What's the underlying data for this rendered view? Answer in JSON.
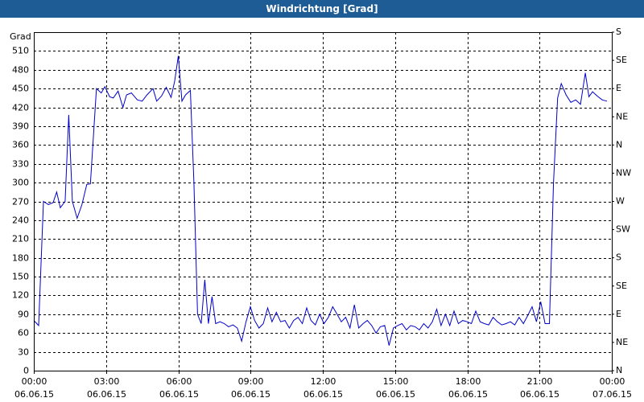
{
  "chart_data": {
    "type": "line",
    "title": "Windrichtung [Grad]",
    "y_label": "Grad",
    "color": "#0000cc",
    "grid": true,
    "xlim": [
      0,
      24
    ],
    "xticks": [
      {
        "value": 0,
        "label": "00:00"
      },
      {
        "value": 3,
        "label": "03:00"
      },
      {
        "value": 6,
        "label": "06:00"
      },
      {
        "value": 9,
        "label": "09:00"
      },
      {
        "value": 12,
        "label": "12:00"
      },
      {
        "value": 15,
        "label": "15:00"
      },
      {
        "value": 18,
        "label": "18:00"
      },
      {
        "value": 21,
        "label": "21:00"
      },
      {
        "value": 24,
        "label": "00:00"
      }
    ],
    "xtick_dates": [
      "06.06.15",
      "06.06.15",
      "06.06.15",
      "06.06.15",
      "06.06.15",
      "06.06.15",
      "06.06.15",
      "06.06.15",
      "07.06.15"
    ],
    "ylim": [
      0,
      540
    ],
    "yticks": [
      0,
      30,
      60,
      90,
      120,
      150,
      180,
      210,
      240,
      270,
      300,
      330,
      360,
      390,
      420,
      450,
      480,
      510
    ],
    "y2lim": [
      0,
      540
    ],
    "y2ticks": [
      {
        "value": 0,
        "label": "N"
      },
      {
        "value": 45,
        "label": "NE"
      },
      {
        "value": 90,
        "label": "E"
      },
      {
        "value": 135,
        "label": "SE"
      },
      {
        "value": 180,
        "label": "S"
      },
      {
        "value": 225,
        "label": "SW"
      },
      {
        "value": 270,
        "label": "W"
      },
      {
        "value": 315,
        "label": "NW"
      },
      {
        "value": 360,
        "label": "N"
      },
      {
        "value": 405,
        "label": "NE"
      },
      {
        "value": 450,
        "label": "E"
      },
      {
        "value": 495,
        "label": "SE"
      },
      {
        "value": 540,
        "label": "S"
      }
    ],
    "x": [
      0,
      0.2,
      0.4,
      0.6,
      0.8,
      0.95,
      1.1,
      1.3,
      1.45,
      1.6,
      1.8,
      2.0,
      2.2,
      2.35,
      2.6,
      2.8,
      2.95,
      3.15,
      3.3,
      3.5,
      3.7,
      3.85,
      4.05,
      4.3,
      4.5,
      4.7,
      4.95,
      5.1,
      5.3,
      5.5,
      5.7,
      5.85,
      6.0,
      6.15,
      6.3,
      6.5,
      6.65,
      6.8,
      6.95,
      7.1,
      7.25,
      7.4,
      7.55,
      7.73,
      7.91,
      8.09,
      8.27,
      8.45,
      8.63,
      8.81,
      8.99,
      9.17,
      9.35,
      9.53,
      9.71,
      9.89,
      10.07,
      10.25,
      10.43,
      10.61,
      10.79,
      10.97,
      11.15,
      11.33,
      11.51,
      11.69,
      11.87,
      12.05,
      12.23,
      12.41,
      12.59,
      12.77,
      12.95,
      13.13,
      13.31,
      13.49,
      13.67,
      13.85,
      14.03,
      14.21,
      14.39,
      14.57,
      14.75,
      14.93,
      15.11,
      15.29,
      15.47,
      15.65,
      15.83,
      16.01,
      16.19,
      16.37,
      16.55,
      16.73,
      16.91,
      17.09,
      17.27,
      17.45,
      17.63,
      17.81,
      17.99,
      18.17,
      18.35,
      18.53,
      18.71,
      18.89,
      19.07,
      19.25,
      19.43,
      19.61,
      19.79,
      19.97,
      20.15,
      20.33,
      20.51,
      20.69,
      20.87,
      21.05,
      21.23,
      21.41,
      21.58,
      21.75,
      21.9,
      22.1,
      22.3,
      22.5,
      22.7,
      22.9,
      23.05,
      23.2,
      23.4,
      23.6,
      23.8
    ],
    "values": [
      80,
      72,
      270,
      265,
      268,
      285,
      260,
      270,
      408,
      270,
      243,
      265,
      297,
      298,
      450,
      443,
      453,
      437,
      435,
      446,
      420,
      440,
      443,
      432,
      430,
      440,
      450,
      430,
      438,
      452,
      436,
      462,
      502,
      430,
      440,
      447,
      300,
      90,
      75,
      145,
      75,
      118,
      75,
      78,
      75,
      70,
      73,
      68,
      47,
      78,
      102,
      80,
      68,
      75,
      100,
      78,
      93,
      78,
      80,
      68,
      80,
      85,
      75,
      100,
      80,
      73,
      90,
      75,
      85,
      102,
      90,
      78,
      85,
      68,
      105,
      68,
      75,
      80,
      72,
      60,
      70,
      72,
      40,
      68,
      72,
      75,
      65,
      72,
      70,
      65,
      75,
      68,
      78,
      98,
      72,
      90,
      72,
      95,
      75,
      80,
      78,
      75,
      95,
      78,
      75,
      73,
      85,
      78,
      73,
      75,
      78,
      73,
      85,
      75,
      88,
      102,
      78,
      110,
      75,
      75,
      300,
      435,
      458,
      440,
      428,
      432,
      425,
      475,
      437,
      445,
      438,
      432,
      430
    ]
  }
}
